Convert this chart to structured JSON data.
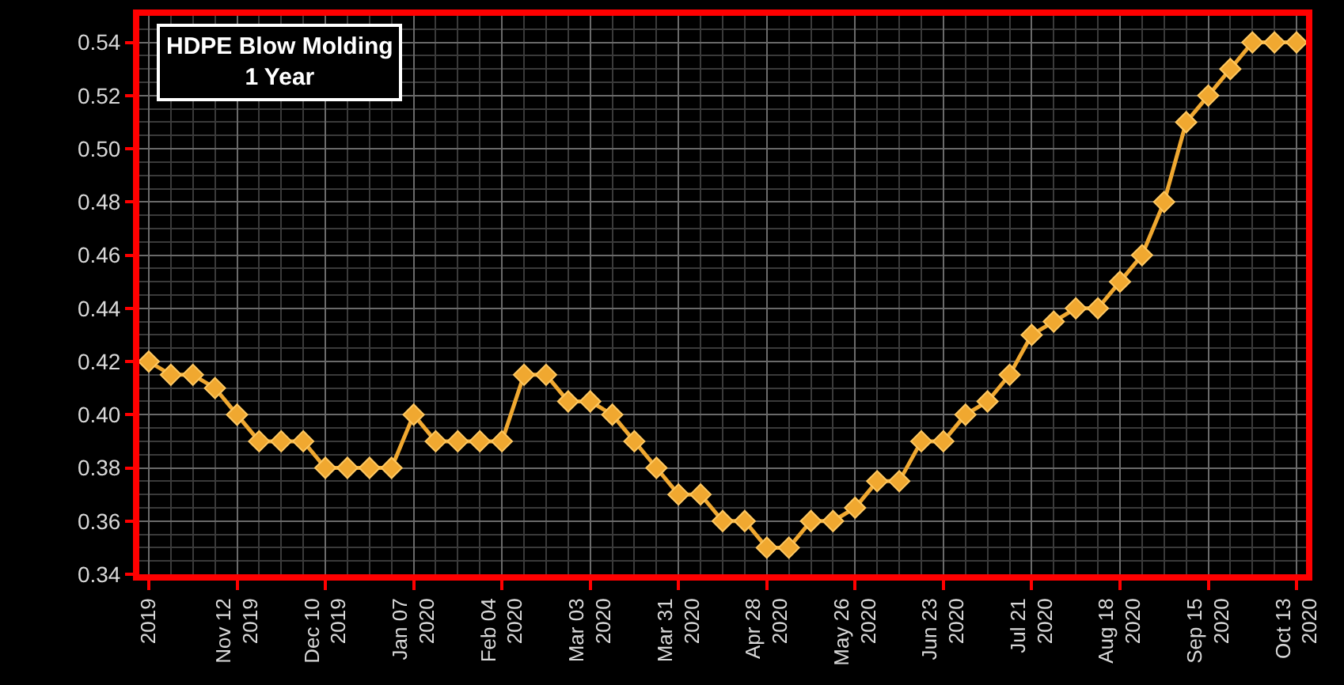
{
  "chart_data": {
    "type": "line",
    "title": "HDPE Blow Molding\n1 Year",
    "x": [
      "2019-10-15",
      "2019-10-22",
      "2019-10-29",
      "2019-11-05",
      "2019-11-12",
      "2019-11-19",
      "2019-11-26",
      "2019-12-03",
      "2019-12-10",
      "2019-12-17",
      "2019-12-24",
      "2019-12-31",
      "2020-01-07",
      "2020-01-14",
      "2020-01-21",
      "2020-01-28",
      "2020-02-04",
      "2020-02-11",
      "2020-02-18",
      "2020-02-25",
      "2020-03-03",
      "2020-03-10",
      "2020-03-17",
      "2020-03-24",
      "2020-03-31",
      "2020-04-07",
      "2020-04-14",
      "2020-04-21",
      "2020-04-28",
      "2020-05-05",
      "2020-05-12",
      "2020-05-19",
      "2020-05-26",
      "2020-06-02",
      "2020-06-09",
      "2020-06-16",
      "2020-06-23",
      "2020-06-30",
      "2020-07-07",
      "2020-07-14",
      "2020-07-21",
      "2020-07-28",
      "2020-08-04",
      "2020-08-11",
      "2020-08-18",
      "2020-08-25",
      "2020-09-01",
      "2020-09-08",
      "2020-09-15",
      "2020-09-22",
      "2020-09-29",
      "2020-10-06",
      "2020-10-13"
    ],
    "series": [
      {
        "color": "#f0a830",
        "values": [
          0.42,
          0.415,
          0.415,
          0.41,
          0.4,
          0.39,
          0.39,
          0.39,
          0.38,
          0.38,
          0.38,
          0.38,
          0.4,
          0.39,
          0.39,
          0.39,
          0.39,
          0.415,
          0.415,
          0.405,
          0.405,
          0.4,
          0.39,
          0.38,
          0.37,
          0.37,
          0.36,
          0.36,
          0.35,
          0.35,
          0.36,
          0.36,
          0.365,
          0.375,
          0.375,
          0.39,
          0.39,
          0.4,
          0.405,
          0.415,
          0.43,
          0.435,
          0.44,
          0.44,
          0.45,
          0.46,
          0.48,
          0.51,
          0.52,
          0.53,
          0.54,
          0.54,
          0.54
        ]
      }
    ],
    "xlim": [
      "2019-10-12",
      "2020-10-16"
    ],
    "xticks": [
      {
        "value": "2019-10-15",
        "label": "2019"
      },
      {
        "value": "2019-11-12",
        "label": "Nov 12\n2019"
      },
      {
        "value": "2019-12-10",
        "label": "Dec 10\n2019"
      },
      {
        "value": "2020-01-07",
        "label": "Jan 07\n2020"
      },
      {
        "value": "2020-02-04",
        "label": "Feb 04\n2020"
      },
      {
        "value": "2020-03-03",
        "label": "Mar 03\n2020"
      },
      {
        "value": "2020-03-31",
        "label": "Mar 31\n2020"
      },
      {
        "value": "2020-04-28",
        "label": "Apr 28\n2020"
      },
      {
        "value": "2020-05-26",
        "label": "May 26\n2020"
      },
      {
        "value": "2020-06-23",
        "label": "Jun 23\n2020"
      },
      {
        "value": "2020-07-21",
        "label": "Jul 21\n2020"
      },
      {
        "value": "2020-08-18",
        "label": "Aug 18\n2020"
      },
      {
        "value": "2020-09-15",
        "label": "Sep 15\n2020"
      },
      {
        "value": "2020-10-13",
        "label": "Oct 13\n2020"
      }
    ],
    "ylim": [
      0.34,
      0.55
    ],
    "yticks": [
      {
        "value": 0.34,
        "label": "0.34"
      },
      {
        "value": 0.36,
        "label": "0.36"
      },
      {
        "value": 0.38,
        "label": "0.38"
      },
      {
        "value": 0.4,
        "label": "0.40"
      },
      {
        "value": 0.42,
        "label": "0.42"
      },
      {
        "value": 0.44,
        "label": "0.44"
      },
      {
        "value": 0.46,
        "label": "0.46"
      },
      {
        "value": 0.48,
        "label": "0.48"
      },
      {
        "value": 0.5,
        "label": "0.50"
      },
      {
        "value": 0.52,
        "label": "0.52"
      },
      {
        "value": 0.54,
        "label": "0.54"
      }
    ],
    "grid": true,
    "marker": "diamond",
    "line_style": "solid"
  }
}
